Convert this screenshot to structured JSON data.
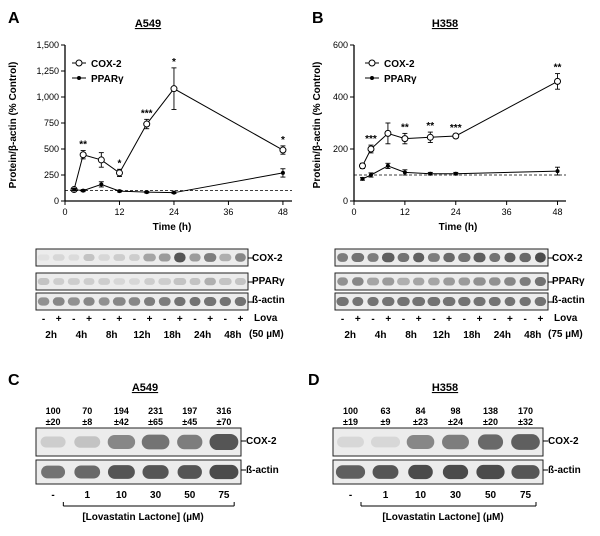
{
  "panels": {
    "A": {
      "letter": "A",
      "title": "A549",
      "blot_bands": [
        "COX-2",
        "PPARγ",
        "ß-actin"
      ],
      "lova_label": "Lova",
      "dose_label": "(50 µM)",
      "times": [
        "2h",
        "4h",
        "8h",
        "12h",
        "18h",
        "24h",
        "48h"
      ],
      "sign_minus": "-",
      "sign_plus": "+"
    },
    "B": {
      "letter": "B",
      "title": "H358",
      "blot_bands": [
        "COX-2",
        "PPARγ",
        "ß-actin"
      ],
      "lova_label": "Lova",
      "dose_label": "(75 µM)",
      "times": [
        "2h",
        "4h",
        "8h",
        "12h",
        "18h",
        "24h",
        "48h"
      ]
    },
    "C": {
      "letter": "C",
      "title": "A549",
      "quant_top": [
        "100",
        "70",
        "194",
        "231",
        "197",
        "316"
      ],
      "quant_bottom": [
        "±20",
        "±8",
        "±42",
        "±65",
        "±45",
        "±70"
      ],
      "bands": [
        "COX-2",
        "ß-actin"
      ],
      "doses": [
        "-",
        "1",
        "10",
        "30",
        "50",
        "75"
      ],
      "xlabel": "[Lovastatin Lactone] (µM)"
    },
    "D": {
      "letter": "D",
      "title": "H358",
      "quant_top": [
        "100",
        "63",
        "84",
        "98",
        "138",
        "170"
      ],
      "quant_bottom": [
        "±19",
        "±9",
        "±23",
        "±24",
        "±20",
        "±32"
      ],
      "bands": [
        "COX-2",
        "ß-actin"
      ],
      "doses": [
        "-",
        "1",
        "10",
        "30",
        "50",
        "75"
      ],
      "xlabel": "[Lovastatin Lactone] (µM)"
    }
  },
  "chart_data": [
    {
      "type": "line",
      "panel": "A",
      "title": "A549",
      "xlabel": "Time (h)",
      "ylabel": "Protein/β-actin (% Control)",
      "xlim": [
        0,
        50
      ],
      "ylim": [
        0,
        1500
      ],
      "xticks": [
        "0",
        "12",
        "24",
        "36",
        "48"
      ],
      "yticks": [
        "0",
        "250",
        "500",
        "750",
        "1,000",
        "1,250",
        "1,500"
      ],
      "baseline": 100,
      "series": [
        {
          "name": "COX-2",
          "marker": "open-circle",
          "x": [
            2,
            4,
            8,
            12,
            18,
            24,
            48
          ],
          "y": [
            110,
            445,
            395,
            270,
            740,
            1080,
            490
          ],
          "err": [
            10,
            40,
            70,
            35,
            45,
            200,
            40
          ],
          "stars": [
            "",
            "**",
            "",
            "*",
            "***",
            "*",
            "*"
          ]
        },
        {
          "name": "PPARγ",
          "marker": "filled-dot",
          "x": [
            2,
            4,
            8,
            12,
            18,
            24,
            48
          ],
          "y": [
            110,
            100,
            160,
            95,
            85,
            80,
            270
          ],
          "err": [
            10,
            10,
            25,
            8,
            8,
            8,
            40
          ]
        }
      ]
    },
    {
      "type": "line",
      "panel": "B",
      "title": "H358",
      "xlabel": "Time (h)",
      "ylabel": "Protein/β-actin (% Control)",
      "xlim": [
        0,
        50
      ],
      "ylim": [
        0,
        600
      ],
      "xticks": [
        "0",
        "12",
        "24",
        "36",
        "48"
      ],
      "yticks": [
        "0",
        "200",
        "400",
        "600"
      ],
      "baseline": 100,
      "series": [
        {
          "name": "COX-2",
          "marker": "open-circle",
          "x": [
            2,
            4,
            8,
            12,
            18,
            24,
            48
          ],
          "y": [
            135,
            200,
            260,
            240,
            245,
            250,
            460
          ],
          "err": [
            10,
            15,
            40,
            20,
            20,
            8,
            30
          ],
          "stars": [
            "",
            "***",
            "",
            "**",
            "**",
            "***",
            "**"
          ]
        },
        {
          "name": "PPARγ",
          "marker": "filled-dot",
          "x": [
            2,
            4,
            8,
            12,
            18,
            24,
            48
          ],
          "y": [
            85,
            100,
            135,
            110,
            105,
            105,
            115
          ],
          "err": [
            5,
            8,
            10,
            10,
            5,
            5,
            15
          ]
        }
      ]
    }
  ]
}
